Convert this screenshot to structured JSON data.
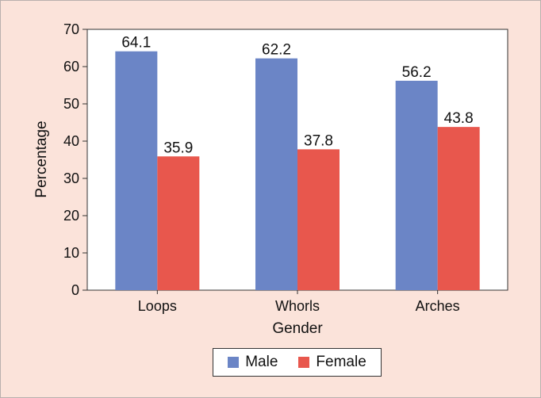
{
  "chart_data": {
    "type": "bar",
    "categories": [
      "Loops",
      "Whorls",
      "Arches"
    ],
    "series": [
      {
        "name": "Male",
        "values": [
          64.1,
          62.2,
          56.2
        ],
        "color": "#6b85c6"
      },
      {
        "name": "Female",
        "values": [
          35.9,
          37.8,
          43.8
        ],
        "color": "#e8574d"
      }
    ],
    "title": "",
    "xlabel": "Gender",
    "ylabel": "Percentage",
    "ylim": [
      0,
      70
    ],
    "yticks": [
      0,
      10,
      20,
      30,
      40,
      50,
      60,
      70
    ],
    "grid": false,
    "legend_position": "bottom",
    "background_color": "#fbe3da",
    "plot_background_color": "#ffffff"
  }
}
